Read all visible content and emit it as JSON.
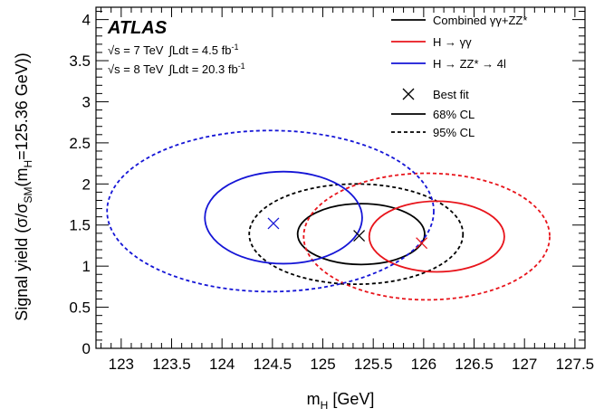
{
  "chart_data": {
    "type": "contour",
    "xlabel": "m",
    "xlabel_sub": "H",
    "xlabel_unit": " [GeV]",
    "ylabel": "Signal yield (σ/σSM(m =125.36 GeV))",
    "ylabel_parts": [
      "Signal yield (σ/σ",
      "SM",
      "(m",
      "H",
      "=125.36 GeV))"
    ],
    "xlim": [
      122.75,
      127.6
    ],
    "ylim": [
      0,
      4.15
    ],
    "x_ticks": [
      {
        "v": 123,
        "label": "123"
      },
      {
        "v": 123.5,
        "label": "123.5"
      },
      {
        "v": 124,
        "label": "124"
      },
      {
        "v": 124.5,
        "label": "124.5"
      },
      {
        "v": 125,
        "label": "125"
      },
      {
        "v": 125.5,
        "label": "125.5"
      },
      {
        "v": 126,
        "label": "126"
      },
      {
        "v": 126.5,
        "label": "126.5"
      },
      {
        "v": 127,
        "label": "127"
      },
      {
        "v": 127.5,
        "label": "127.5"
      }
    ],
    "y_ticks": [
      {
        "v": 0,
        "label": "0"
      },
      {
        "v": 0.5,
        "label": "0.5"
      },
      {
        "v": 1,
        "label": "1"
      },
      {
        "v": 1.5,
        "label": "1.5"
      },
      {
        "v": 2,
        "label": "2"
      },
      {
        "v": 2.5,
        "label": "2.5"
      },
      {
        "v": 3,
        "label": "3"
      },
      {
        "v": 3.5,
        "label": "3.5"
      },
      {
        "v": 4,
        "label": "4"
      }
    ],
    "experiment": "ATLAS",
    "energy_lines": [
      {
        "sqrt": "√s",
        "eq": " = 7 TeV",
        "integral": "∫Ldt = 4.5 fb",
        "sup": "-1"
      },
      {
        "sqrt": "√s",
        "eq": " = 8 TeV",
        "integral": "∫Ldt = 20.3 fb",
        "sup": "-1"
      }
    ],
    "legend": {
      "series": [
        {
          "name": "Combined γγ+ZZ*",
          "color": "#000000"
        },
        {
          "name": "H → γγ",
          "color": "#e8141b"
        },
        {
          "name": "H → ZZ* → 4l",
          "color": "#1515d6"
        }
      ],
      "markers": [
        {
          "name": "Best fit",
          "symbol": "cross"
        },
        {
          "name": "68% CL",
          "style": "solid"
        },
        {
          "name": "95% CL",
          "style": "dashed"
        }
      ]
    },
    "series": [
      {
        "name": "Combined γγ+ZZ*",
        "color": "#000000",
        "best_fit": {
          "x": 125.36,
          "y": 1.37
        },
        "cl68": {
          "cx": 125.38,
          "cy": 1.39,
          "rx": 0.63,
          "ry": 0.37
        },
        "cl95": {
          "cx": 125.33,
          "cy": 1.39,
          "rx": 1.06,
          "ry": 0.61
        }
      },
      {
        "name": "H → γγ",
        "color": "#e8141b",
        "best_fit": {
          "x": 125.98,
          "y": 1.28
        },
        "cl68": {
          "cx": 126.13,
          "cy": 1.36,
          "rx": 0.67,
          "ry": 0.43
        },
        "cl95": {
          "cx": 126.03,
          "cy": 1.36,
          "rx": 1.22,
          "ry": 0.77
        }
      },
      {
        "name": "H → ZZ* → 4l",
        "color": "#1515d6",
        "best_fit": {
          "x": 124.51,
          "y": 1.52
        },
        "cl68": {
          "cx": 124.61,
          "cy": 1.59,
          "rx": 0.78,
          "ry": 0.56
        },
        "cl95": {
          "cx": 124.48,
          "cy": 1.67,
          "rx": 1.62,
          "ry": 0.98
        }
      }
    ]
  }
}
